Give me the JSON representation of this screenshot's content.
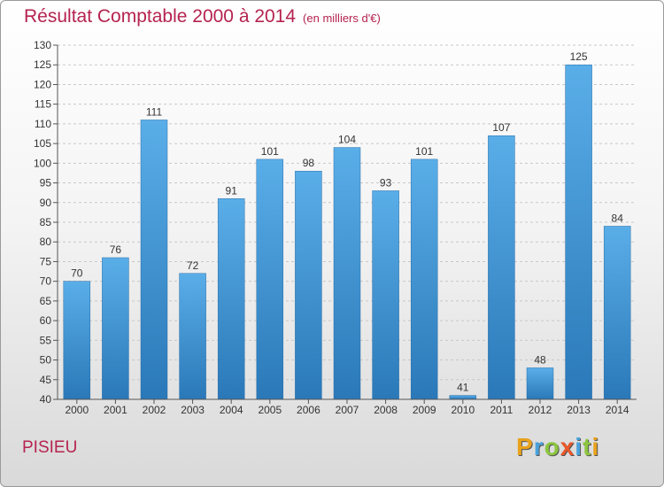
{
  "title": "Résultat Comptable 2000 à 2014",
  "subtitle": "(en milliers d'€)",
  "place": "PISIEU",
  "logo": {
    "letters": [
      "P",
      "r",
      "o",
      "x",
      "i",
      "t",
      "i"
    ],
    "colors": [
      "#e8a21c",
      "#4aa3dc",
      "#8cc63f",
      "#e8572a",
      "#4aa3dc",
      "#8cc63f",
      "#e8a21c"
    ]
  },
  "colors": {
    "bar": "#4a9fe0",
    "bar_dark": "#2e7dbf",
    "title": "#b5234f"
  },
  "chart_data": {
    "type": "bar",
    "title": "Résultat Comptable 2000 à 2014",
    "xlabel": "",
    "ylabel": "",
    "ylim": [
      40,
      130
    ],
    "ytick_step": 5,
    "grid": "horizontal dashed",
    "categories": [
      "2000",
      "2001",
      "2002",
      "2003",
      "2004",
      "2005",
      "2006",
      "2007",
      "2008",
      "2009",
      "2010",
      "2011",
      "2012",
      "2013",
      "2014"
    ],
    "values": [
      70,
      76,
      111,
      72,
      91,
      101,
      98,
      104,
      93,
      101,
      41,
      107,
      48,
      125,
      84
    ]
  }
}
